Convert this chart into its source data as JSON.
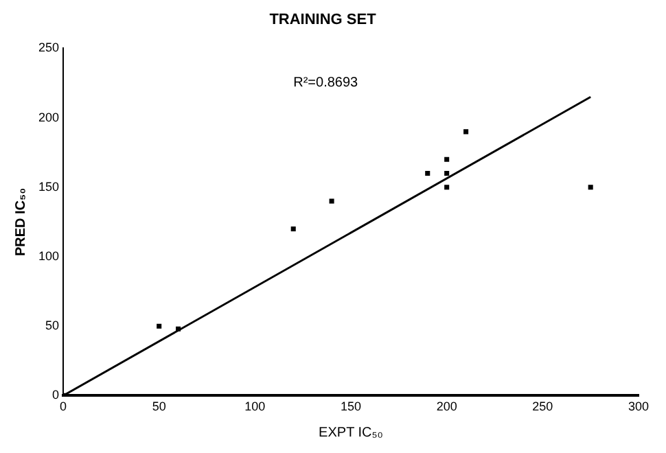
{
  "chart_data": {
    "type": "scatter",
    "title": "TRAINING SET",
    "xlabel": "EXPT IC₅₀",
    "ylabel": "PRED IC₅₀",
    "annotations": [
      "R²=0.8693"
    ],
    "series": [
      {
        "color": "#000000",
        "marker": "square",
        "x": [
          0,
          50,
          60,
          120,
          140,
          190,
          200,
          200,
          200,
          210,
          275
        ],
        "values": [
          0,
          50,
          48,
          120,
          140,
          160,
          170,
          160,
          150,
          190,
          150
        ]
      },
      {
        "type": "line",
        "color": "#000000",
        "marker": "none",
        "line_style": "solid",
        "x": [
          0,
          275
        ],
        "values": [
          0,
          215
        ]
      }
    ],
    "xlim": [
      0,
      300
    ],
    "xticks": [
      0,
      50,
      100,
      150,
      200,
      250,
      300
    ],
    "ylim": [
      0,
      250
    ],
    "yticks": [
      0,
      50,
      100,
      150,
      200,
      250
    ],
    "grid": false,
    "legend": false
  }
}
